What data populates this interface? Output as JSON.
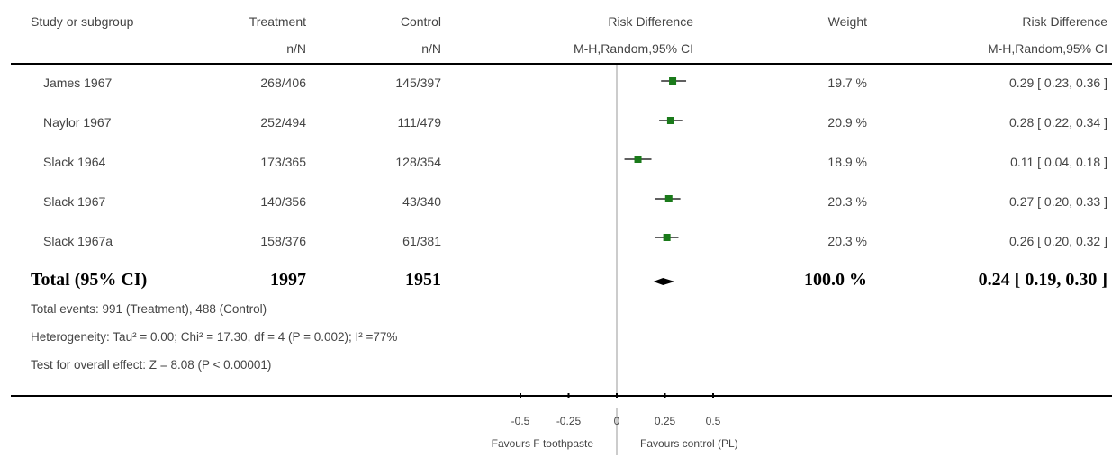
{
  "headers": {
    "study": "Study or subgroup",
    "treatment": "Treatment",
    "treatment_sub": "n/N",
    "control": "Control",
    "control_sub": "n/N",
    "plot": "Risk Difference",
    "plot_sub": "M-H,Random,95% CI",
    "weight": "Weight",
    "rd": "Risk Difference",
    "rd_sub": "M-H,Random,95% CI"
  },
  "rows": [
    {
      "study": "James 1967",
      "treatment": "268/406",
      "control": "145/397",
      "weight": "19.7 %",
      "rd_text": "0.29 [ 0.23, 0.36 ]"
    },
    {
      "study": "Naylor 1967",
      "treatment": "252/494",
      "control": "111/479",
      "weight": "20.9 %",
      "rd_text": "0.28 [ 0.22, 0.34 ]"
    },
    {
      "study": "Slack 1964",
      "treatment": "173/365",
      "control": "128/354",
      "weight": "18.9 %",
      "rd_text": "0.11 [ 0.04, 0.18 ]"
    },
    {
      "study": "Slack 1967",
      "treatment": "140/356",
      "control": "43/340",
      "weight": "20.3 %",
      "rd_text": "0.27 [ 0.20, 0.33 ]"
    },
    {
      "study": "Slack 1967a",
      "treatment": "158/376",
      "control": "61/381",
      "weight": "20.3 %",
      "rd_text": "0.26 [ 0.20, 0.32 ]"
    }
  ],
  "total": {
    "label": "Total (95% CI)",
    "treatment": "1997",
    "control": "1951",
    "weight": "100.0 %",
    "rd_text": "0.24 [ 0.19, 0.30 ]"
  },
  "notes": {
    "events": "Total events: 991 (Treatment), 488 (Control)",
    "heterogeneity": "Heterogeneity: Tau² = 0.00; Chi² = 17.30, df = 4 (P = 0.002); I² =77%",
    "overall": "Test for overall effect: Z = 8.08 (P < 0.00001)"
  },
  "axis": {
    "favours_left": "Favours F toothpaste",
    "favours_right": "Favours control (PL)"
  },
  "colors": {
    "marker": "#1a7a1a",
    "line": "#000000",
    "null_line": "#999999"
  },
  "chart_data": {
    "type": "scatter",
    "x_scale": "linear",
    "xlim": [
      -0.5,
      0.5
    ],
    "xticks": [
      -0.5,
      -0.25,
      0,
      0.25,
      0.5
    ],
    "xtick_labels": [
      "-0.5",
      "-0.25",
      "0",
      "0.25",
      "0.5"
    ],
    "null_value": 0,
    "studies": [
      {
        "study": "James 1967",
        "estimate": 0.29,
        "ci_low": 0.23,
        "ci_high": 0.36,
        "weight": 19.7
      },
      {
        "study": "Naylor 1967",
        "estimate": 0.28,
        "ci_low": 0.22,
        "ci_high": 0.34,
        "weight": 20.9
      },
      {
        "study": "Slack 1964",
        "estimate": 0.11,
        "ci_low": 0.04,
        "ci_high": 0.18,
        "weight": 18.9
      },
      {
        "study": "Slack 1967",
        "estimate": 0.27,
        "ci_low": 0.2,
        "ci_high": 0.33,
        "weight": 20.3
      },
      {
        "study": "Slack 1967a",
        "estimate": 0.26,
        "ci_low": 0.2,
        "ci_high": 0.32,
        "weight": 20.3
      }
    ],
    "pooled": {
      "estimate": 0.24,
      "ci_low": 0.19,
      "ci_high": 0.3
    }
  }
}
